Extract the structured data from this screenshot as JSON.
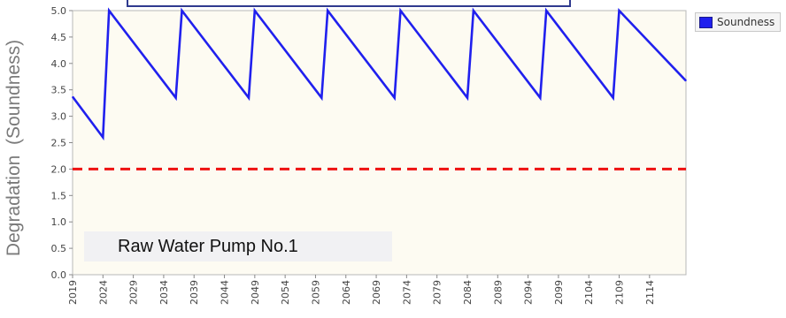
{
  "chart_data": {
    "type": "line",
    "ylabel": "Degradation  (Soundness)",
    "ylim": [
      0.0,
      5.0
    ],
    "y_ticks": [
      "0.0",
      "0.5",
      "1.0",
      "1.5",
      "2.0",
      "2.5",
      "3.0",
      "3.5",
      "4.0",
      "4.5",
      "5.0"
    ],
    "xlim": [
      2019,
      2120
    ],
    "x_ticks": [
      "2019",
      "2024",
      "2029",
      "2034",
      "2039",
      "2044",
      "2049",
      "2054",
      "2059",
      "2064",
      "2069",
      "2074",
      "2079",
      "2084",
      "2089",
      "2094",
      "2099",
      "2104",
      "2109",
      "2114"
    ],
    "series": [
      {
        "name": "Soundness",
        "color": "#2020ee",
        "x": [
          2019,
          2024,
          2025,
          2036,
          2037,
          2048,
          2049,
          2060,
          2061,
          2072,
          2073,
          2084,
          2085,
          2096,
          2097,
          2108,
          2109,
          2120
        ],
        "y": [
          3.37,
          2.6,
          5.0,
          3.35,
          5.0,
          3.35,
          5.0,
          3.35,
          5.0,
          3.35,
          5.0,
          3.35,
          5.0,
          3.35,
          5.0,
          3.35,
          5.0,
          3.67
        ]
      }
    ],
    "threshold": {
      "y": 2.0,
      "color": "#ee1111",
      "style": "dashed"
    },
    "legend": {
      "placement": "top-right",
      "label": "Soundness"
    },
    "annotation": "Raw Water Pump No.1",
    "plot_background": "#fdfbf2",
    "grid": false
  }
}
